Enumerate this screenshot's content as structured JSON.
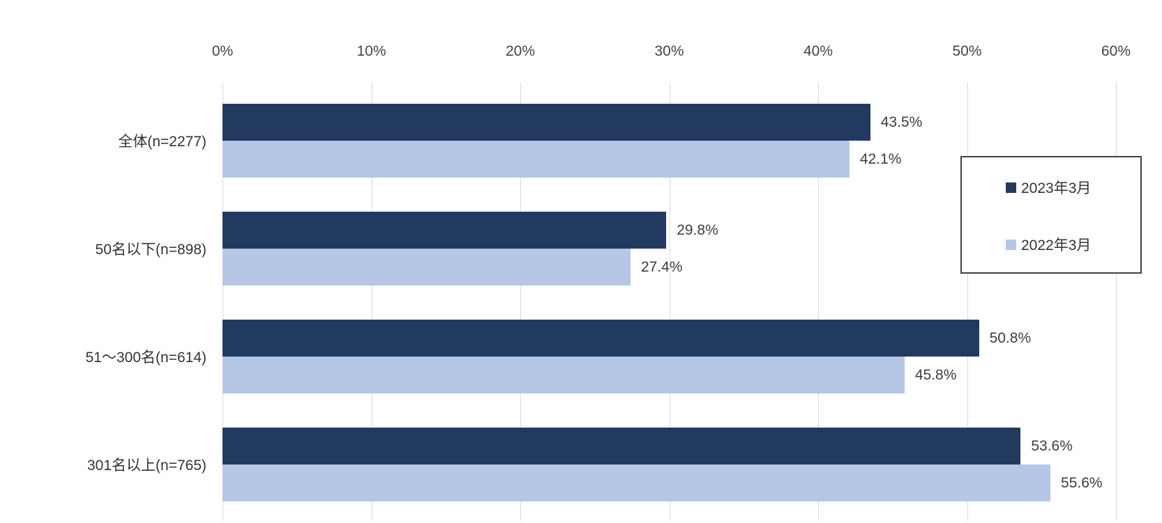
{
  "chart_data": {
    "type": "bar",
    "orientation": "horizontal",
    "title": "",
    "categories": [
      "全体(n=2277)",
      "50名以下(n=898)",
      "51〜300名(n=614)",
      "301名以上(n=765)"
    ],
    "series": [
      {
        "name": "2023年3月",
        "color": "#233a60",
        "values": [
          43.5,
          29.8,
          50.8,
          53.6
        ],
        "labels": [
          "43.5%",
          "29.8%",
          "50.8%",
          "53.6%"
        ]
      },
      {
        "name": "2022年3月",
        "color": "#b5c6e6",
        "values": [
          42.1,
          27.4,
          45.8,
          55.6
        ],
        "labels": [
          "42.1%",
          "27.4%",
          "45.8%",
          "55.6%"
        ]
      }
    ],
    "x_axis": {
      "min": 0,
      "max": 60,
      "tick_step": 10,
      "ticks": [
        "0%",
        "10%",
        "20%",
        "30%",
        "40%",
        "50%",
        "60%"
      ]
    },
    "grid": true,
    "legend_position": "right-inside",
    "colors": {
      "gridline": "#d9d9d9",
      "axis_text": "#444444",
      "label_text": "#3d3d3d",
      "legend_border": "#404040",
      "background": "#ffffff"
    }
  }
}
